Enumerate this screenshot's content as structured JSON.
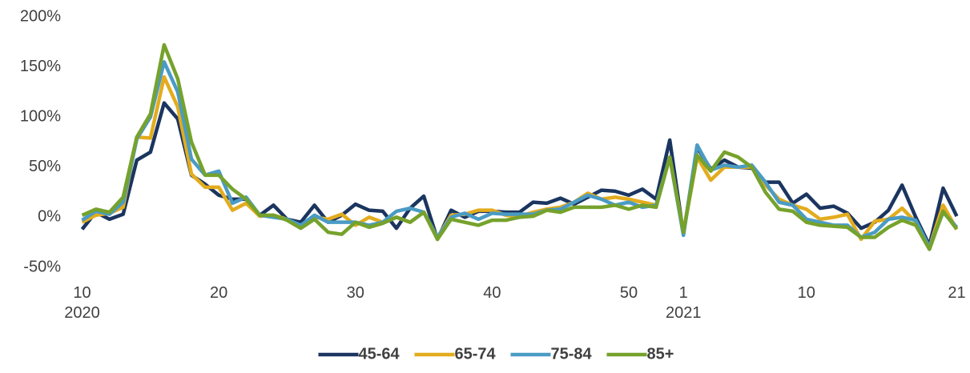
{
  "chart_data": {
    "type": "line",
    "categories": [
      "10\n2020",
      null,
      null,
      null,
      null,
      null,
      null,
      null,
      null,
      null,
      "20",
      null,
      null,
      null,
      null,
      null,
      null,
      null,
      null,
      null,
      "30",
      null,
      null,
      null,
      null,
      null,
      null,
      null,
      null,
      null,
      "40",
      null,
      null,
      null,
      null,
      null,
      null,
      null,
      null,
      null,
      "50",
      null,
      null,
      null,
      "1\n2021",
      null,
      null,
      null,
      null,
      null,
      null,
      null,
      null,
      "10",
      null,
      null,
      null,
      null,
      null,
      null,
      null,
      null,
      null,
      null,
      "21"
    ],
    "series": [
      {
        "name": "45-64",
        "color": "#1b3560",
        "values": [
          -12,
          5,
          -2,
          3,
          57,
          65,
          114,
          98,
          42,
          33,
          22,
          18,
          18,
          2,
          12,
          -2,
          -5,
          12,
          -5,
          2,
          13,
          7,
          6,
          -11,
          9,
          21,
          -22,
          7,
          0,
          6,
          6,
          5,
          5,
          15,
          14,
          19,
          13,
          20,
          27,
          26,
          22,
          28,
          18,
          77,
          -17,
          70,
          48,
          57,
          50,
          49,
          35,
          35,
          14,
          23,
          9,
          11,
          4,
          -11,
          -5,
          7,
          32,
          0,
          -28,
          29,
          1
        ]
      },
      {
        "name": "65-74",
        "color": "#e3ac1e",
        "values": [
          -5,
          2,
          4,
          10,
          80,
          79,
          140,
          110,
          43,
          30,
          30,
          7,
          14,
          1,
          2,
          -2,
          -10,
          0,
          -2,
          3,
          -8,
          0,
          -5,
          0,
          -5,
          5,
          -20,
          2,
          3,
          7,
          7,
          2,
          1,
          5,
          8,
          10,
          15,
          24,
          18,
          20,
          18,
          15,
          12,
          60,
          -15,
          60,
          37,
          50,
          50,
          50,
          32,
          18,
          12,
          8,
          -2,
          0,
          3,
          -22,
          -4,
          -2,
          9,
          -5,
          -30,
          12,
          -12
        ]
      },
      {
        "name": "75-84",
        "color": "#4a9bc4",
        "values": [
          -3,
          6,
          3,
          15,
          78,
          100,
          155,
          125,
          58,
          42,
          46,
          14,
          20,
          2,
          0,
          -2,
          -8,
          2,
          -5,
          -5,
          -5,
          -8,
          -5,
          6,
          9,
          5,
          -20,
          0,
          4,
          -2,
          4,
          3,
          3,
          3,
          7,
          8,
          15,
          22,
          18,
          12,
          15,
          10,
          12,
          60,
          -18,
          72,
          47,
          52,
          50,
          52,
          35,
          15,
          12,
          -2,
          -5,
          -8,
          -8,
          -20,
          -15,
          -2,
          0,
          -3,
          -30,
          5,
          -10
        ]
      },
      {
        "name": "85+",
        "color": "#76a22c",
        "values": [
          2,
          8,
          5,
          20,
          80,
          103,
          172,
          138,
          75,
          42,
          42,
          28,
          18,
          2,
          2,
          -3,
          -11,
          -2,
          -15,
          -17,
          -5,
          -10,
          -6,
          0,
          -5,
          5,
          -22,
          -2,
          -5,
          -8,
          -3,
          -3,
          0,
          1,
          7,
          5,
          10,
          10,
          10,
          12,
          8,
          12,
          10,
          60,
          -15,
          62,
          46,
          65,
          60,
          50,
          25,
          8,
          6,
          -5,
          -8,
          -9,
          -10,
          -20,
          -20,
          -10,
          -3,
          -8,
          -32,
          6,
          -12
        ]
      }
    ],
    "ylim": [
      -50,
      200
    ],
    "yticks": [
      {
        "value": -50,
        "label": "-50%"
      },
      {
        "value": 0,
        "label": "0%"
      },
      {
        "value": 50,
        "label": "50%"
      },
      {
        "value": 100,
        "label": "100%"
      },
      {
        "value": 150,
        "label": "150%"
      },
      {
        "value": 200,
        "label": "200%"
      }
    ],
    "grid": false,
    "legend": "bottom"
  }
}
